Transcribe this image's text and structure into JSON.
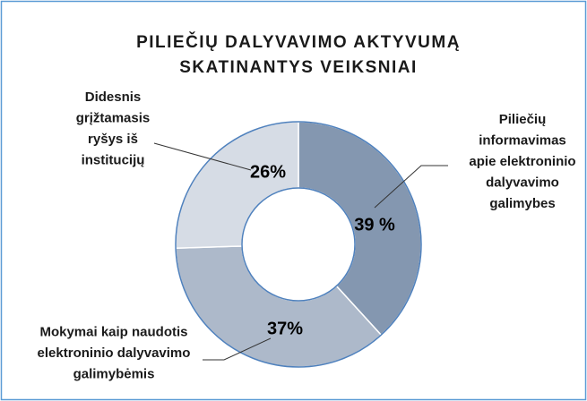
{
  "chart_data": {
    "type": "donut",
    "title": [
      "PILIEČIŲ DALYVAVIMO AKTYVUMĄ",
      "SKATINANTYS VEIKSNIAI"
    ],
    "categories": [
      "Piliečių\ninformavimas\napie elektroninio\ndalyvavimo\ngalimybes",
      "Mokymai  kaip naudotis\nelektroninio dalyvavimo\ngalimybėmis",
      "Didesnis\ngrįžtamasis\nryšys iš\ninstitucijų"
    ],
    "values": [
      39,
      37,
      26
    ],
    "value_labels": [
      "39 %",
      "37%",
      "26%"
    ],
    "colors": [
      "#8497b0",
      "#adb9ca",
      "#d6dce5"
    ]
  }
}
